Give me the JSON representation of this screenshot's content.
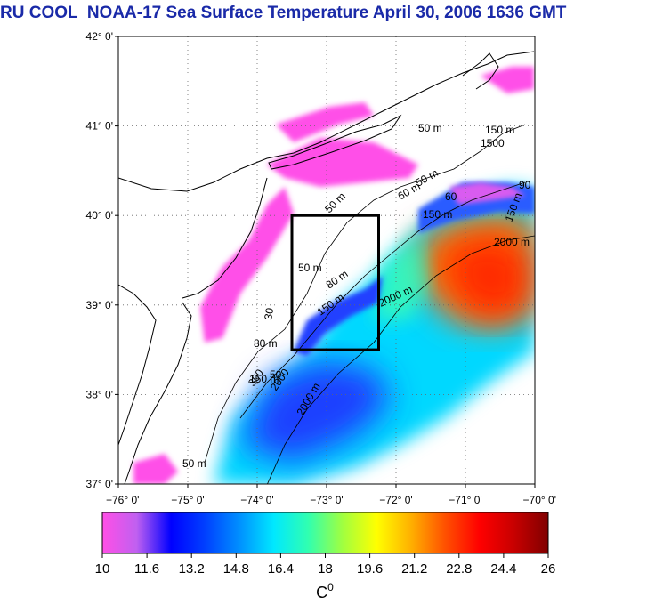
{
  "title": "RU COOL  NOAA-17 Sea Surface Temperature April 30, 2006 1636 GMT",
  "map": {
    "lat_labels": [
      "42° 0'",
      "41° 0'",
      "40° 0'",
      "39° 0'",
      "38° 0'",
      "37° 0'"
    ],
    "lon_labels": [
      "−76° 0'",
      "−75° 0'",
      "−74° 0'",
      "−73° 0'",
      "−72° 0'",
      "−71° 0'",
      "−70° 0'"
    ],
    "lat_range": [
      37,
      42
    ],
    "lon_range": [
      -76,
      -70
    ],
    "grid": true,
    "study_box": {
      "lon": [
        -73.5,
        -72.25
      ],
      "lat": [
        38.5,
        40
      ]
    },
    "contour_labels": [
      "50 m",
      "50 m",
      "50 m",
      "50 m",
      "50 m",
      "60 m",
      "80 m",
      "80 m",
      "150 m",
      "150 m",
      "150 m",
      "150 m",
      "150 m",
      "1500",
      "2000 m",
      "2000 m",
      "2000 m",
      "2000",
      "300",
      "50",
      "30",
      "90",
      "60"
    ]
  },
  "colorbar": {
    "tick_labels": [
      "10",
      "11.6",
      "13.2",
      "14.8",
      "16.4",
      "18",
      "19.6",
      "21.2",
      "22.8",
      "24.4",
      "26"
    ],
    "range": [
      10,
      26
    ],
    "unit": "C",
    "unit_sup": "0",
    "colors": [
      "#ff4fe6",
      "#c060f0",
      "#0000ff",
      "#0040ff",
      "#0090ff",
      "#00e8ff",
      "#30ffb0",
      "#a0ff40",
      "#ffff00",
      "#ffb000",
      "#ff5000",
      "#ff0000",
      "#c80000",
      "#800000"
    ]
  }
}
